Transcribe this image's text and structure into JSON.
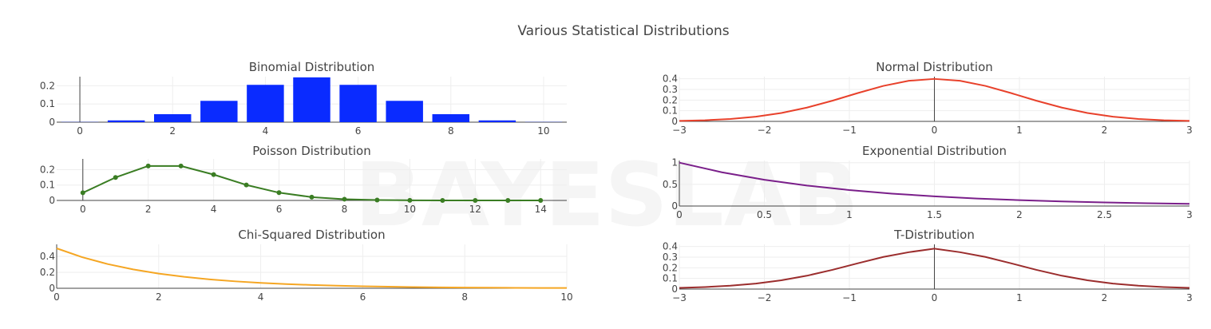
{
  "figure": {
    "title": "Various Statistical Distributions"
  },
  "chart_data": [
    {
      "key": "binomial",
      "type": "bar",
      "title": "Binomial Distribution",
      "color": "#0a2bff",
      "x": [
        0,
        1,
        2,
        3,
        4,
        5,
        6,
        7,
        8,
        9,
        10
      ],
      "values": [
        0.001,
        0.0098,
        0.0439,
        0.1172,
        0.2051,
        0.2461,
        0.2051,
        0.1172,
        0.0439,
        0.0098,
        0.001
      ],
      "xlim": [
        -0.5,
        10.5
      ],
      "ylim": [
        0,
        0.25
      ],
      "xticks": [
        0,
        2,
        4,
        6,
        8,
        10
      ],
      "xtick_labels": [
        "0",
        "2",
        "4",
        "6",
        "8",
        "10"
      ],
      "yticks": [
        0,
        0.1,
        0.2
      ],
      "ytick_labels": [
        "0",
        "0.1",
        "0.2"
      ],
      "grid": true
    },
    {
      "key": "normal",
      "type": "line",
      "title": "Normal Distribution",
      "color": "#e8412b",
      "x": [
        -3,
        -2.7,
        -2.4,
        -2.1,
        -1.8,
        -1.5,
        -1.2,
        -0.9,
        -0.6,
        -0.3,
        0,
        0.3,
        0.6,
        0.9,
        1.2,
        1.5,
        1.8,
        2.1,
        2.4,
        2.7,
        3
      ],
      "y": [
        0.0044,
        0.0104,
        0.0224,
        0.044,
        0.079,
        0.1295,
        0.1942,
        0.2661,
        0.3332,
        0.3814,
        0.3989,
        0.3814,
        0.3332,
        0.2661,
        0.1942,
        0.1295,
        0.079,
        0.044,
        0.0224,
        0.0104,
        0.0044
      ],
      "xlim": [
        -3,
        3
      ],
      "ylim": [
        0,
        0.42
      ],
      "xticks": [
        -3,
        -2,
        -1,
        0,
        1,
        2,
        3
      ],
      "xtick_labels": [
        "−3",
        "−2",
        "−1",
        "0",
        "1",
        "2",
        "3"
      ],
      "yticks": [
        0,
        0.1,
        0.2,
        0.3,
        0.4
      ],
      "ytick_labels": [
        "0",
        "0.1",
        "0.2",
        "0.3",
        "0.4"
      ],
      "grid": true
    },
    {
      "key": "poisson",
      "type": "line",
      "markers": true,
      "title": "Poisson Distribution",
      "color": "#3a7d23",
      "x": [
        0,
        1,
        2,
        3,
        4,
        5,
        6,
        7,
        8,
        9,
        10,
        11,
        12,
        13,
        14
      ],
      "y": [
        0.0498,
        0.1494,
        0.224,
        0.224,
        0.168,
        0.1008,
        0.0504,
        0.0216,
        0.0081,
        0.0027,
        0.0008,
        0.0002,
        0.0001,
        0.0,
        0.0
      ],
      "xlim": [
        -0.8,
        14.8
      ],
      "ylim": [
        0,
        0.27
      ],
      "xticks": [
        0,
        2,
        4,
        6,
        8,
        10,
        12,
        14
      ],
      "xtick_labels": [
        "0",
        "2",
        "4",
        "6",
        "8",
        "10",
        "12",
        "14"
      ],
      "yticks": [
        0,
        0.1,
        0.2
      ],
      "ytick_labels": [
        "0",
        "0.1",
        "0.2"
      ],
      "grid": true
    },
    {
      "key": "exponential",
      "type": "line",
      "title": "Exponential Distribution",
      "color": "#7a1f8a",
      "x": [
        0,
        0.25,
        0.5,
        0.75,
        1,
        1.25,
        1.5,
        1.75,
        2,
        2.25,
        2.5,
        2.75,
        3
      ],
      "y": [
        1,
        0.7788,
        0.6065,
        0.4724,
        0.3679,
        0.2865,
        0.2231,
        0.1738,
        0.1353,
        0.1054,
        0.0821,
        0.0639,
        0.0498
      ],
      "xlim": [
        0,
        3
      ],
      "ylim": [
        0,
        1.05
      ],
      "xticks": [
        0,
        0.5,
        1,
        1.5,
        2,
        2.5,
        3
      ],
      "xtick_labels": [
        "0",
        "0.5",
        "1",
        "1.5",
        "2",
        "2.5",
        "3"
      ],
      "yticks": [
        0,
        0.5,
        1
      ],
      "ytick_labels": [
        "0",
        "0.5",
        "1"
      ],
      "grid": true
    },
    {
      "key": "chisquared",
      "type": "line",
      "title": "Chi-Squared Distribution",
      "color": "#f5a623",
      "x": [
        0,
        0.5,
        1,
        1.5,
        2,
        2.5,
        3,
        3.5,
        4,
        4.5,
        5,
        5.5,
        6,
        6.5,
        7,
        7.5,
        8,
        8.5,
        9,
        9.5,
        10
      ],
      "y": [
        0.5,
        0.3894,
        0.3033,
        0.2362,
        0.1839,
        0.1433,
        0.1116,
        0.0869,
        0.0677,
        0.0527,
        0.041,
        0.032,
        0.0249,
        0.0194,
        0.0151,
        0.0118,
        0.0092,
        0.0071,
        0.0056,
        0.0043,
        0.0034
      ],
      "xlim": [
        0,
        10
      ],
      "ylim": [
        0,
        0.55
      ],
      "xticks": [
        0,
        2,
        4,
        6,
        8,
        10
      ],
      "xtick_labels": [
        "0",
        "2",
        "4",
        "6",
        "8",
        "10"
      ],
      "yticks": [
        0,
        0.2,
        0.4
      ],
      "ytick_labels": [
        "0",
        "0.2",
        "0.4"
      ],
      "grid": true
    },
    {
      "key": "t",
      "type": "line",
      "title": "T-Distribution",
      "color": "#9b2d2d",
      "x": [
        -3,
        -2.7,
        -2.4,
        -2.1,
        -1.8,
        -1.5,
        -1.2,
        -0.9,
        -0.6,
        -0.3,
        0,
        0.3,
        0.6,
        0.9,
        1.2,
        1.5,
        1.8,
        2.1,
        2.4,
        2.7,
        3
      ],
      "y": [
        0.0114,
        0.0191,
        0.0317,
        0.0517,
        0.0822,
        0.1253,
        0.1804,
        0.2425,
        0.3021,
        0.3464,
        0.3796,
        0.3464,
        0.3021,
        0.2425,
        0.1804,
        0.1253,
        0.0822,
        0.0517,
        0.0317,
        0.0191,
        0.0114
      ],
      "xlim": [
        -3,
        3
      ],
      "ylim": [
        0,
        0.42
      ],
      "xticks": [
        -3,
        -2,
        -1,
        0,
        1,
        2,
        3
      ],
      "xtick_labels": [
        "−3",
        "−2",
        "−1",
        "0",
        "1",
        "2",
        "3"
      ],
      "yticks": [
        0,
        0.1,
        0.2,
        0.3,
        0.4
      ],
      "ytick_labels": [
        "0",
        "0.1",
        "0.2",
        "0.3",
        "0.4"
      ],
      "grid": true
    }
  ]
}
